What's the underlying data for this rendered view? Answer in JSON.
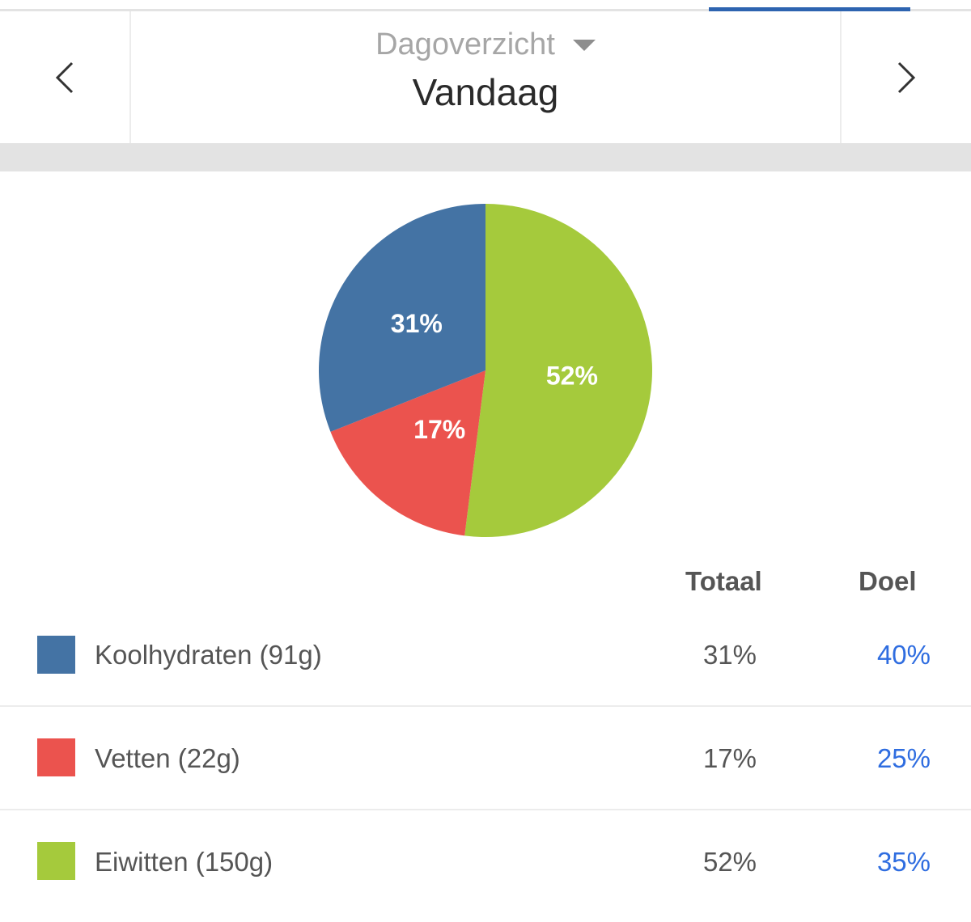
{
  "header": {
    "subtitle": "Dagoverzicht",
    "title": "Vandaag"
  },
  "colors": {
    "carbs": "#4473a4",
    "fats": "#eb534e",
    "proteins": "#a5ca3c",
    "accent": "#2e64b0",
    "goal": "#2f6de0"
  },
  "table": {
    "col_total": "Totaal",
    "col_goal": "Doel",
    "rows": [
      {
        "label": "Koolhydraten (91g)",
        "total": "31%",
        "goal": "40%"
      },
      {
        "label": "Vetten (22g)",
        "total": "17%",
        "goal": "25%"
      },
      {
        "label": "Eiwitten (150g)",
        "total": "52%",
        "goal": "35%"
      }
    ]
  },
  "chart_data": {
    "type": "pie",
    "slices": [
      {
        "name": "Eiwitten",
        "value": 52,
        "label": "52%",
        "color": "#a5ca3c"
      },
      {
        "name": "Vetten",
        "value": 17,
        "label": "17%",
        "color": "#eb534e"
      },
      {
        "name": "Koolhydraten",
        "value": 31,
        "label": "31%",
        "color": "#4473a4"
      }
    ]
  }
}
